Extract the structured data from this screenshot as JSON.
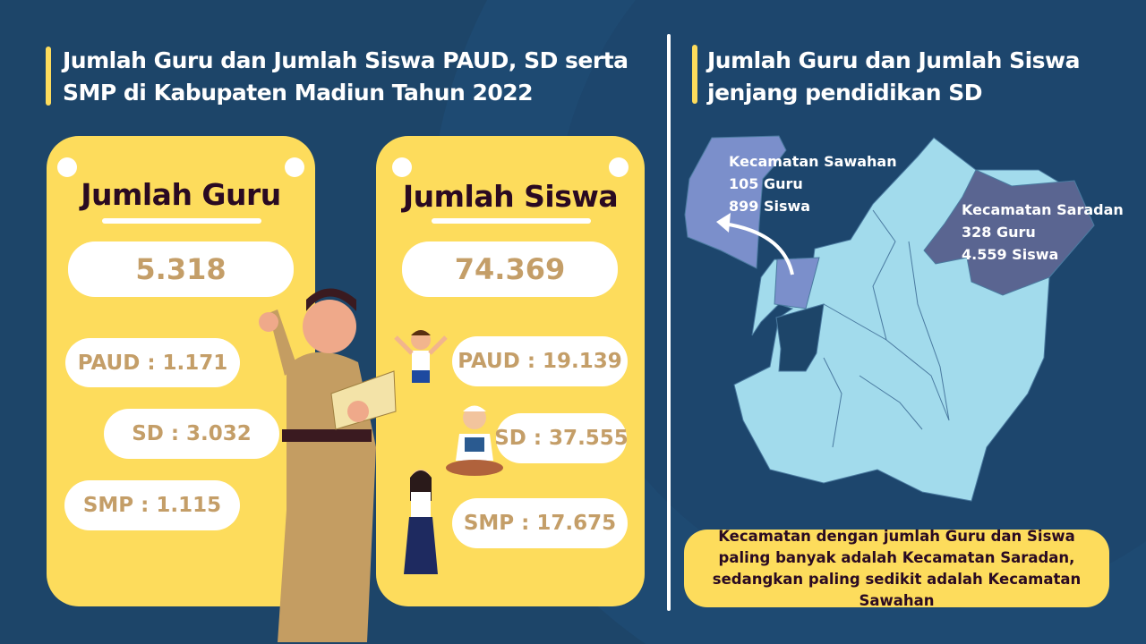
{
  "left": {
    "title": "Jumlah Guru dan Jumlah Siswa PAUD, SD serta SMP di Kabupaten Madiun Tahun 2022",
    "guru": {
      "heading": "Jumlah Guru",
      "total": "5.318",
      "paud": "PAUD : 1.171",
      "sd": "SD : 3.032",
      "smp": "SMP : 1.115"
    },
    "siswa": {
      "heading": "Jumlah Siswa",
      "total": "74.369",
      "paud": "PAUD : 19.139",
      "sd": "SD : 37.555",
      "smp": "SMP : 17.675"
    }
  },
  "right": {
    "title": "Jumlah Guru dan Jumlah Siswa jenjang pendidikan SD",
    "sawahan": {
      "name": "Kecamatan Sawahan",
      "guru": "105 Guru",
      "siswa": "899 Siswa"
    },
    "saradan": {
      "name": "Kecamatan Saradan",
      "guru": "328 Guru",
      "siswa": "4.559 Siswa"
    },
    "note": "Kecamatan dengan jumlah Guru dan Siswa paling banyak adalah Kecamatan Saradan, sedangkan paling sedikit adalah Kecamatan Sawahan"
  },
  "colors": {
    "background": "#1d4569",
    "card": "#fddc5c",
    "number": "#c49e68",
    "map": "#a2dbec",
    "sawahan": "#7b8fcb",
    "saradan": "#5a6591"
  }
}
